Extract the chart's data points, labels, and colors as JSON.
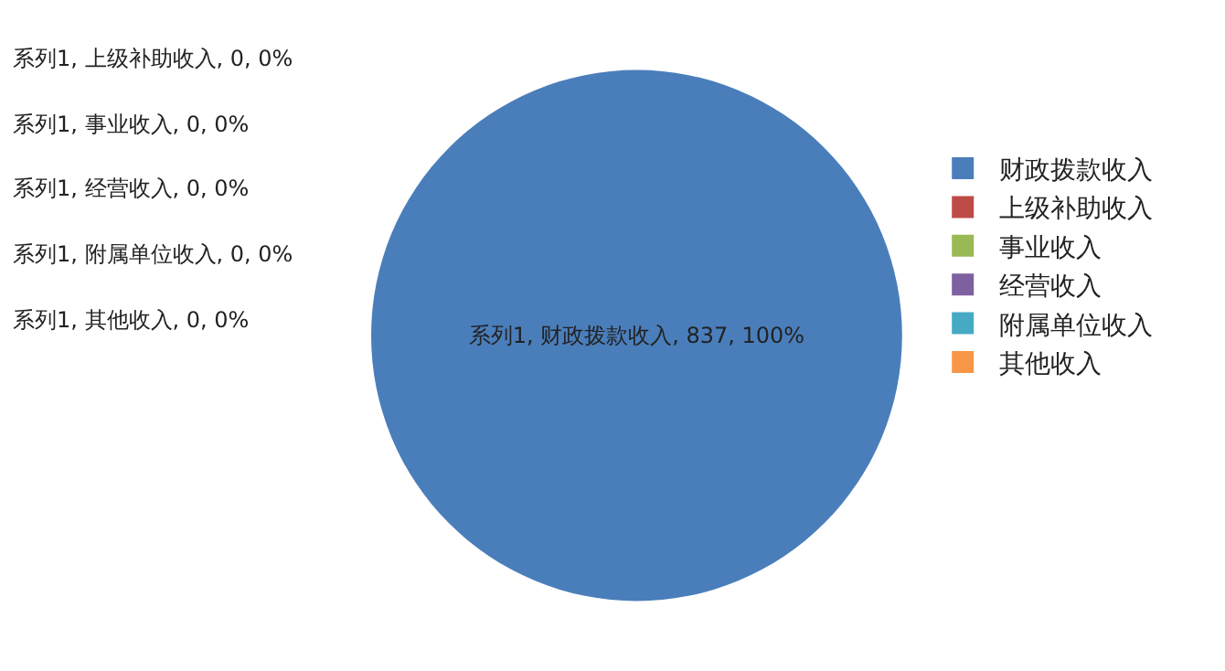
{
  "chart_data": {
    "type": "pie",
    "categories": [
      "财政拨款收入",
      "上级补助收入",
      "事业收入",
      "经营收入",
      "附属单位收入",
      "其他收入"
    ],
    "values": [
      837,
      0,
      0,
      0,
      0,
      0
    ],
    "colors": [
      "#4a7ebb",
      "#be4b48",
      "#98b954",
      "#7d60a0",
      "#46aac5",
      "#f79646"
    ],
    "value_labels": [
      "系列1, 财政拨款收入, 837, 100%",
      "系列1, 上级补助收入, 0, 0%",
      "系列1, 事业收入, 0, 0%",
      "系列1, 经营收入, 0, 0%",
      "系列1, 附属单位收入, 0, 0%",
      "系列1, 其他收入, 0, 0%"
    ],
    "legend": "right"
  }
}
